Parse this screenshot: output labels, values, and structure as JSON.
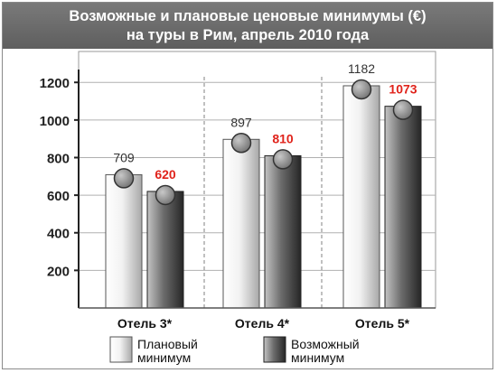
{
  "chart_data": {
    "type": "bar",
    "title_lines": [
      "Возможные и плановые ценовые минимумы (€)",
      "на туры в Рим, апрель 2010 года"
    ],
    "categories": [
      "Отель 3*",
      "Отель 4*",
      "Отель 5*"
    ],
    "series": [
      {
        "name": "Плановый минимум",
        "legend_lines": [
          "Плановый",
          "минимум"
        ],
        "values": [
          709,
          897,
          1182
        ],
        "color": "#e4e4e4",
        "label_color": "#333333"
      },
      {
        "name": "Возможный минимум",
        "legend_lines": [
          "Возможный",
          "минимум"
        ],
        "values": [
          620,
          810,
          1073
        ],
        "color": "#6a6a6a",
        "label_color": "#e0231b"
      }
    ],
    "y_ticks": [
      "200",
      "400",
      "600",
      "800",
      "1000",
      "1200"
    ],
    "ylim": [
      0,
      1350
    ],
    "grid": true,
    "legend_position": "bottom"
  }
}
